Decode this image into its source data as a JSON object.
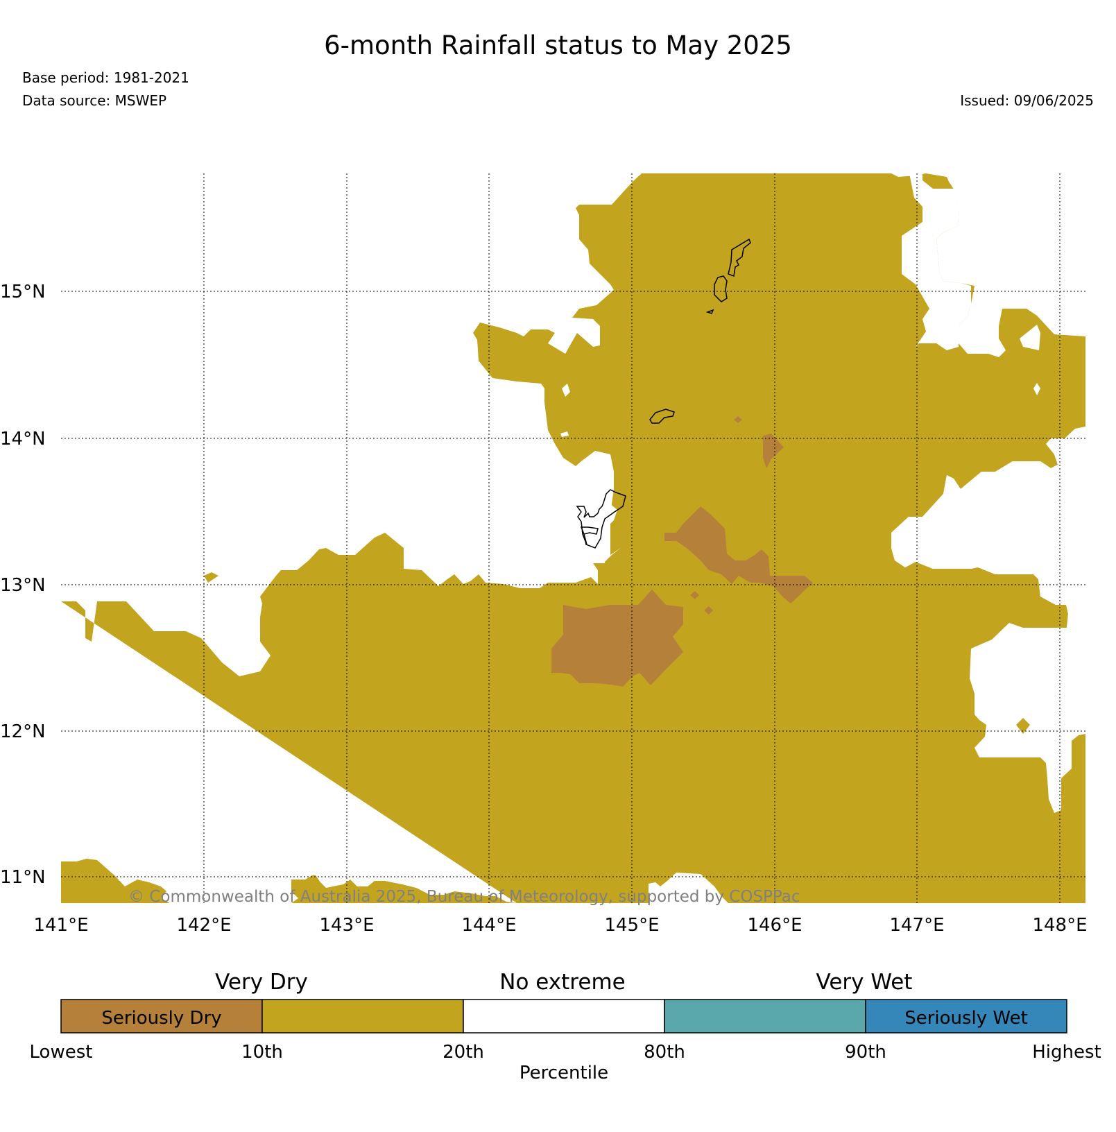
{
  "header": {
    "title": "6-month Rainfall status to May 2025",
    "base_period": "Base period: 1981-2021",
    "data_source": "Data source: MSWEP",
    "issued": "Issued: 09/06/2025"
  },
  "map": {
    "lon_ticks": [
      "141°E",
      "142°E",
      "143°E",
      "144°E",
      "145°E",
      "146°E",
      "147°E",
      "148°E"
    ],
    "lat_ticks": [
      "15°N",
      "14°N",
      "13°N",
      "12°N",
      "11°N"
    ],
    "copyright": "© Commonwealth of Australia 2025, Bureau of Meteorology, supported by COSPPac",
    "colors": {
      "seriously_dry": "#b5813a",
      "very_dry": "#c3a41f",
      "no_extreme": "#ffffff",
      "very_wet": "#5aa8ab",
      "seriously_wet": "#3487b8"
    }
  },
  "legend": {
    "groups": [
      "Very Dry",
      "No extreme",
      "Very Wet"
    ],
    "segments": [
      {
        "label": "Seriously Dry",
        "color": "#b5813a"
      },
      {
        "label": "",
        "color": "#c3a41f"
      },
      {
        "label": "",
        "color": "#ffffff"
      },
      {
        "label": "",
        "color": "#5aa8ab"
      },
      {
        "label": "Seriously Wet",
        "color": "#3487b8"
      }
    ],
    "ticks": [
      "Lowest",
      "10th",
      "20th",
      "80th",
      "90th",
      "Highest"
    ],
    "axis_label": "Percentile"
  }
}
